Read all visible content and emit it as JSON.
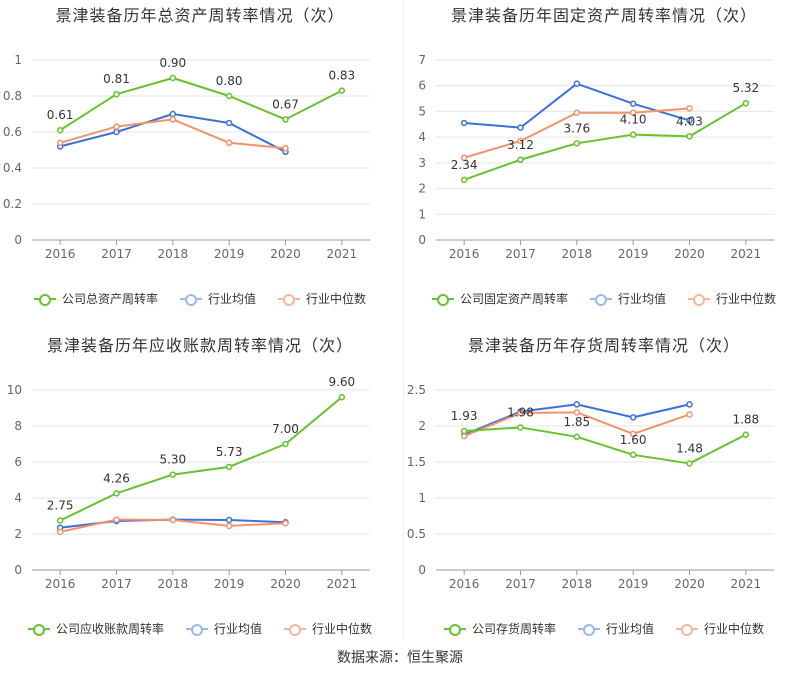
{
  "source": "数据来源：恒生聚源",
  "colors": {
    "company": "#66c22d",
    "avg": "#3a72d8",
    "median": "#f2936c",
    "grid": "#e6e6e6",
    "axis": "#999999"
  },
  "chart_data": [
    {
      "type": "line",
      "title": "景津装备历年总资产周转率情况（次）",
      "categories": [
        "2016",
        "2017",
        "2018",
        "2019",
        "2020",
        "2021"
      ],
      "ylim": [
        0,
        1
      ],
      "yticks": [
        0,
        0.2,
        0.4,
        0.6,
        0.8,
        1
      ],
      "ytick_labels": [
        "0",
        "0.2",
        "0.4",
        "0.6",
        "0.8",
        "1"
      ],
      "legend_position": "bottom",
      "series": [
        {
          "name": "公司总资产周转率",
          "values": [
            0.61,
            0.81,
            0.9,
            0.8,
            0.67,
            0.83
          ],
          "labels": [
            "0.61",
            "0.81",
            "0.90",
            "0.80",
            "0.67",
            "0.83"
          ]
        },
        {
          "name": "行业均值",
          "values": [
            0.52,
            0.6,
            0.7,
            0.65,
            0.49,
            null
          ]
        },
        {
          "name": "行业中位数",
          "values": [
            0.54,
            0.63,
            0.67,
            0.54,
            0.51,
            null
          ]
        }
      ]
    },
    {
      "type": "line",
      "title": "景津装备历年固定资产周转率情况（次）",
      "categories": [
        "2016",
        "2017",
        "2018",
        "2019",
        "2020",
        "2021"
      ],
      "ylim": [
        0,
        7
      ],
      "yticks": [
        0,
        1,
        2,
        3,
        4,
        5,
        6,
        7
      ],
      "ytick_labels": [
        "0",
        "1",
        "2",
        "3",
        "4",
        "5",
        "6",
        "7"
      ],
      "legend_position": "bottom",
      "series": [
        {
          "name": "公司固定资产周转率",
          "values": [
            2.34,
            3.12,
            3.76,
            4.1,
            4.03,
            5.32
          ],
          "labels": [
            "2.34",
            "3.12",
            "3.76",
            "4.10",
            "4.03",
            "5.32"
          ]
        },
        {
          "name": "行业均值",
          "values": [
            4.55,
            4.37,
            6.08,
            5.3,
            4.65,
            null
          ]
        },
        {
          "name": "行业中位数",
          "values": [
            3.2,
            3.85,
            4.95,
            4.95,
            5.12,
            null
          ]
        }
      ]
    },
    {
      "type": "line",
      "title": "景津装备历年应收账款周转率情况（次）",
      "categories": [
        "2016",
        "2017",
        "2018",
        "2019",
        "2020",
        "2021"
      ],
      "ylim": [
        0,
        10
      ],
      "yticks": [
        0,
        2,
        4,
        6,
        8,
        10
      ],
      "ytick_labels": [
        "0",
        "2",
        "4",
        "6",
        "8",
        "10"
      ],
      "legend_position": "bottom",
      "series": [
        {
          "name": "公司应收账款周转率",
          "values": [
            2.75,
            4.26,
            5.3,
            5.73,
            7.0,
            9.6
          ],
          "labels": [
            "2.75",
            "4.26",
            "5.30",
            "5.73",
            "7.00",
            "9.60"
          ]
        },
        {
          "name": "行业均值",
          "values": [
            2.35,
            2.72,
            2.8,
            2.78,
            2.65,
            null
          ]
        },
        {
          "name": "行业中位数",
          "values": [
            2.12,
            2.8,
            2.78,
            2.45,
            2.6,
            null
          ]
        }
      ]
    },
    {
      "type": "line",
      "title": "景津装备历年存货周转率情况（次）",
      "categories": [
        "2016",
        "2017",
        "2018",
        "2019",
        "2020",
        "2021"
      ],
      "ylim": [
        0,
        2.5
      ],
      "yticks": [
        0,
        0.5,
        1,
        1.5,
        2,
        2.5
      ],
      "ytick_labels": [
        "0",
        "0.5",
        "1",
        "1.5",
        "2",
        "2.5"
      ],
      "legend_position": "bottom",
      "series": [
        {
          "name": "公司存货周转率",
          "values": [
            1.93,
            1.98,
            1.85,
            1.6,
            1.48,
            1.88
          ],
          "labels": [
            "1.93",
            "1.98",
            "1.85",
            "1.60",
            "1.48",
            "1.88"
          ]
        },
        {
          "name": "行业均值",
          "values": [
            1.88,
            2.2,
            2.3,
            2.12,
            2.3,
            null
          ]
        },
        {
          "name": "行业中位数",
          "values": [
            1.86,
            2.18,
            2.19,
            1.89,
            2.16,
            null
          ]
        }
      ]
    }
  ]
}
